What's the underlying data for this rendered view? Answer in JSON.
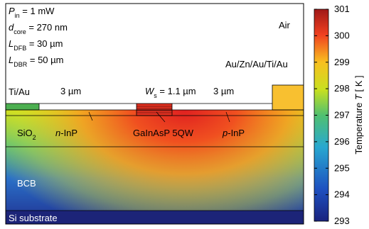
{
  "figure": {
    "labels": [
      [
        {
          "text": "P",
          "italic": true
        },
        {
          "text": "in",
          "sub": true
        },
        {
          "text": " = 1 mW"
        }
      ],
      [
        {
          "text": "d",
          "italic": true
        },
        {
          "text": "core",
          "sub": true
        },
        {
          "text": " = 270 nm"
        }
      ],
      [
        {
          "text": "L",
          "italic": true
        },
        {
          "text": "DFB",
          "sub": true
        },
        {
          "text": " = 30 µm"
        }
      ],
      [
        {
          "text": "L",
          "italic": true
        },
        {
          "text": "DBR",
          "sub": true
        },
        {
          "text": " = 50 µm"
        }
      ],
      [
        {
          "text": "Air"
        }
      ],
      [
        {
          "text": "Au/Zn/Au/Ti/Au"
        }
      ],
      [
        {
          "text": "Ti/Au"
        }
      ],
      [
        {
          "text": "3 µm"
        }
      ],
      [
        {
          "text": "W",
          "italic": true
        },
        {
          "text": "s",
          "sub": true
        },
        {
          "text": " = 1.1 µm"
        }
      ],
      [
        {
          "text": "3 µm"
        }
      ],
      [
        {
          "text": "SiO"
        },
        {
          "text": "2",
          "sub": true
        }
      ],
      [
        {
          "text": "n",
          "italic": true
        },
        {
          "text": "-InP"
        }
      ],
      [
        {
          "text": "GaInAsP 5QW"
        }
      ],
      [
        {
          "text": "p",
          "italic": true
        },
        {
          "text": "-InP"
        }
      ],
      [
        {
          "text": "BCB",
          "white": true
        }
      ],
      [
        {
          "text": "Si substrate",
          "white": true
        }
      ]
    ],
    "colorbar": {
      "label": [
        {
          "text": "Temperature "
        },
        {
          "text": "T",
          "italic": true
        },
        {
          "text": " [ K ]"
        }
      ],
      "lim": [
        293,
        301
      ],
      "ticks": [
        293,
        294,
        295,
        296,
        297,
        298,
        299,
        300,
        301
      ]
    }
  }
}
